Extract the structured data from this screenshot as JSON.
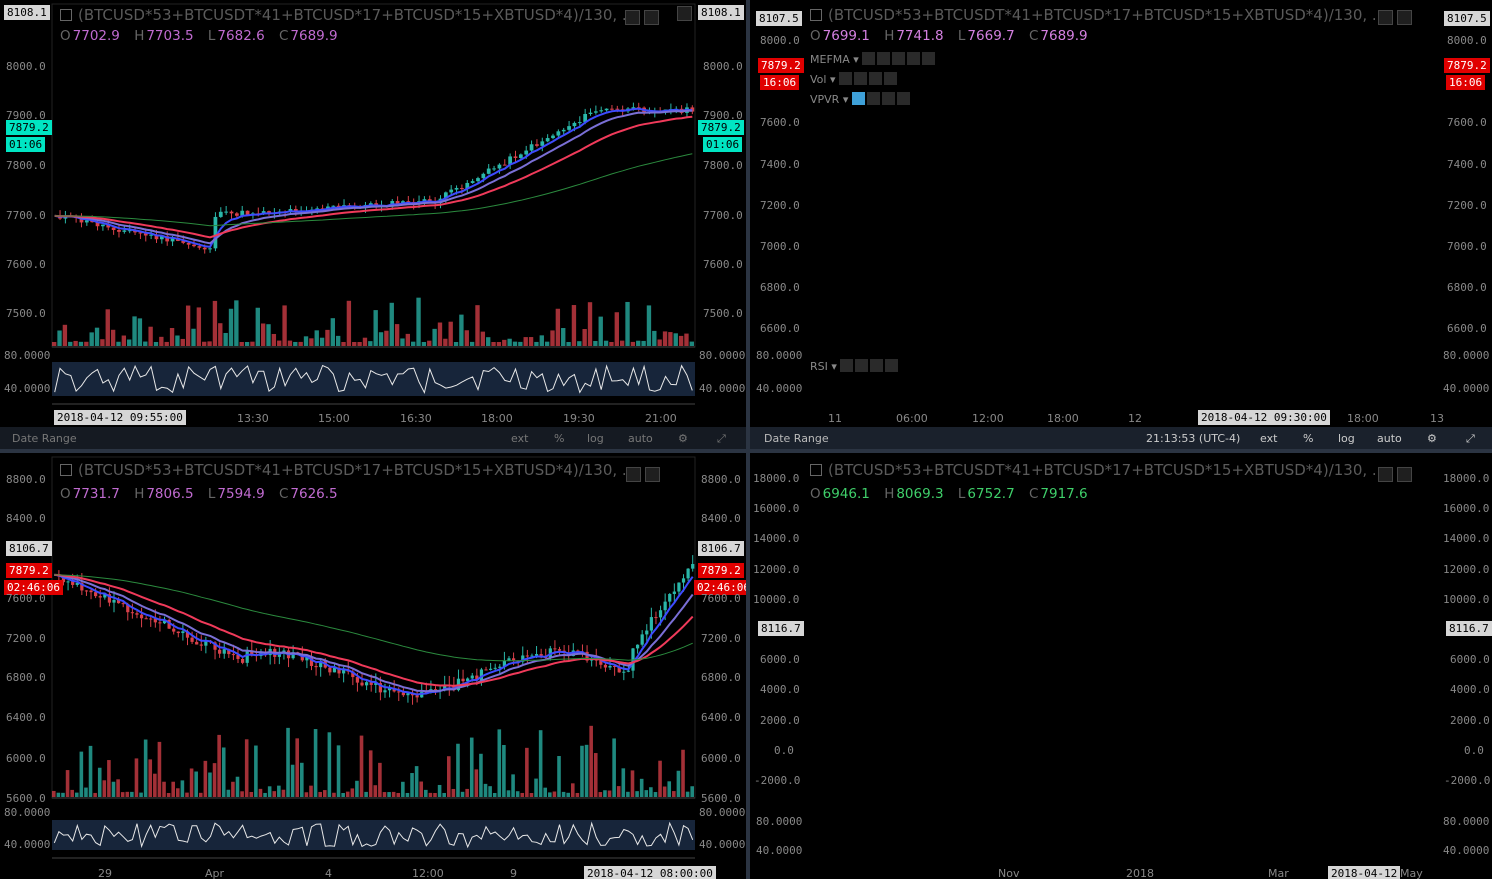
{
  "colors": {
    "up": "#2ab7a9",
    "down": "#d9404a",
    "ema_fast": "#3d4bff",
    "ema_mid": "#7a6fd6",
    "ema_slow": "#f03a5a",
    "ema_long": "#2b8a3e",
    "rsi_bg": "#17253a"
  },
  "symbol": "(BTCUSD*53+BTCUSDT*41+BTCUSD*17+BTCUSD*15+XBTUSD*4)/130, ...",
  "panes": [
    {
      "id": "tl",
      "ohlc": {
        "o": "7702.9",
        "h": "7703.5",
        "l": "7682.6",
        "c": "7689.9"
      },
      "price_labels": [
        "8000.0",
        "7900.0",
        "7800.0",
        "7700.0",
        "7600.0",
        "7500.0"
      ],
      "top_tag": "8108.1",
      "last_price": "7879.2",
      "countdown": "01:06",
      "rsi_labels": [
        "80.0000",
        "40.0000"
      ],
      "time_labels": [
        "2018-04-12 09:55:00",
        "13:30",
        "15:00",
        "16:30",
        "18:00",
        "19:30",
        "21:00"
      ]
    },
    {
      "id": "tr",
      "ohlc": {
        "o": "7699.1",
        "h": "7741.8",
        "l": "7669.7",
        "c": "7689.9"
      },
      "indicators": [
        "MEFMA",
        "Vol",
        "VPVR"
      ],
      "price_labels": [
        "8000.0",
        "7600.0",
        "7400.0",
        "7200.0",
        "7000.0",
        "6800.0",
        "6600.0"
      ],
      "top_tag": "8107.5",
      "last_price": "7879.2",
      "countdown": "16:06",
      "rsi_label": "RSI",
      "rsi_labels": [
        "80.0000",
        "40.0000"
      ],
      "time_labels": [
        "11",
        "06:00",
        "12:00",
        "18:00",
        "12",
        "2018-04-12 09:30:00",
        "18:00",
        "13"
      ]
    },
    {
      "id": "bl",
      "ohlc": {
        "o": "7731.7",
        "h": "7806.5",
        "l": "7594.9",
        "c": "7626.5"
      },
      "price_labels": [
        "8800.0",
        "8400.0",
        "7600.0",
        "7200.0",
        "6800.0",
        "6400.0",
        "6000.0",
        "5600.0"
      ],
      "top_tag": "8106.7",
      "last_price": "7879.2",
      "countdown": "02:46:06",
      "rsi_labels": [
        "80.0000",
        "40.0000"
      ],
      "time_labels": [
        "29",
        "Apr",
        "4",
        "12:00",
        "9",
        "2018-04-12 08:00:00"
      ]
    },
    {
      "id": "br",
      "ohlc": {
        "o": "6946.1",
        "h": "8069.3",
        "l": "6752.7",
        "c": "7917.6"
      },
      "price_labels": [
        "18000.0",
        "16000.0",
        "14000.0",
        "12000.0",
        "10000.0",
        "6000.0",
        "4000.0",
        "2000.0",
        "0.0",
        "-2000.0"
      ],
      "top_tag": "8116.7",
      "rsi_labels": [
        "80.0000",
        "40.0000"
      ],
      "time_labels": [
        "Nov",
        "2018",
        "Mar",
        "2018-04-12",
        "May"
      ]
    }
  ],
  "bottom_bar": {
    "date_range": "Date Range",
    "time": "21:13:53 (UTC-4)",
    "ext": "ext",
    "pct": "%",
    "log": "log",
    "auto": "auto"
  }
}
